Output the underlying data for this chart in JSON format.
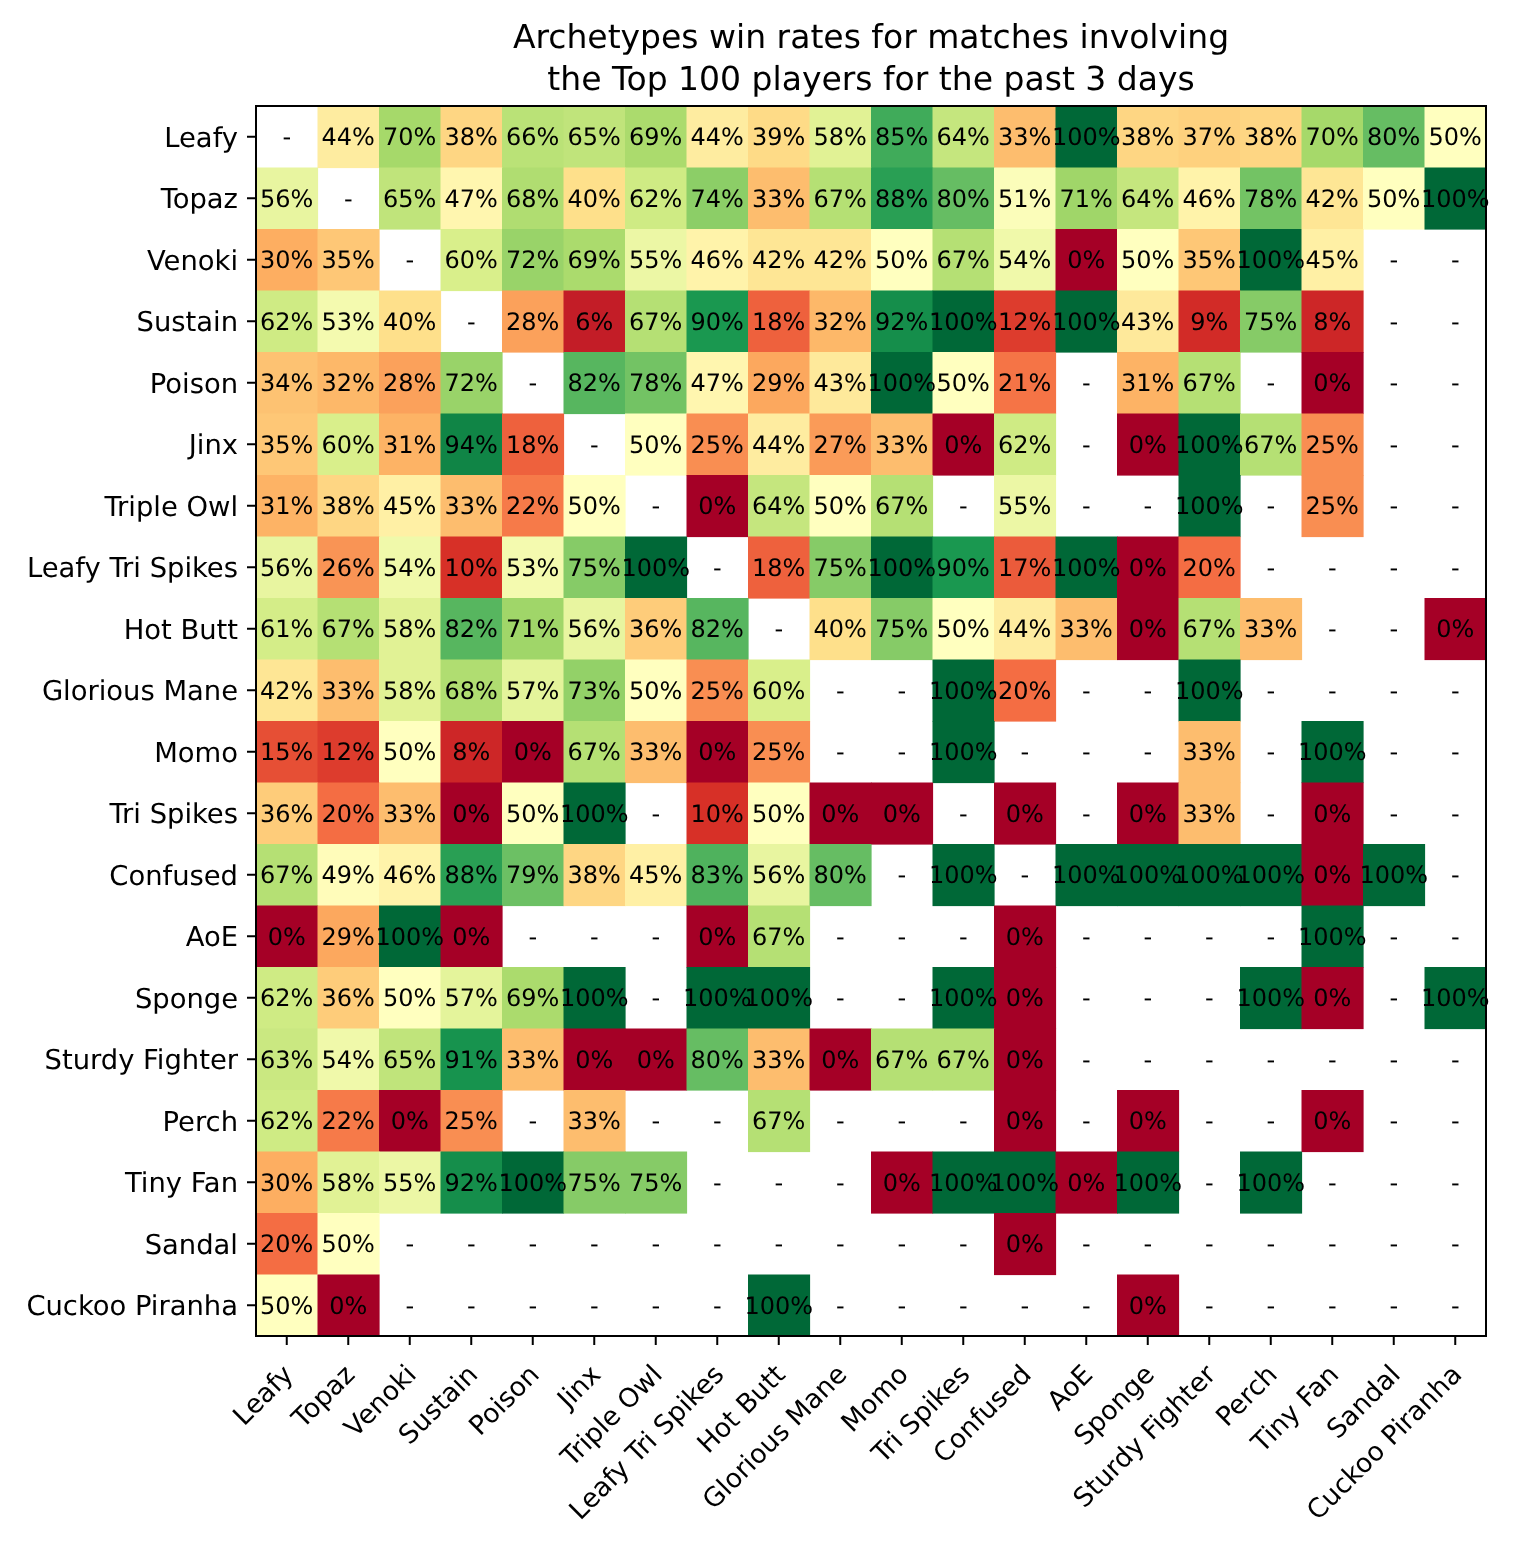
{
  "chart_data": {
    "type": "heatmap",
    "title": "Archetypes win rates for matches involving\nthe Top 100 players for the past 3 days",
    "categories": [
      "Leafy",
      "Topaz",
      "Venoki",
      "Sustain",
      "Poison",
      "Jinx",
      "Triple Owl",
      "Leafy Tri Spikes",
      "Hot Butt",
      "Glorious Mane",
      "Momo",
      "Tri Spikes",
      "Confused",
      "AoE",
      "Sponge",
      "Sturdy Fighter",
      "Perch",
      "Tiny Fan",
      "Sandal",
      "Cuckoo Piranha"
    ],
    "y_categories": [
      "Leafy",
      "Topaz",
      "Venoki",
      "Sustain",
      "Poison",
      "Jinx",
      "Triple Owl",
      "Leafy Tri Spikes",
      "Hot Butt",
      "Glorious Mane",
      "Momo",
      "Tri Spikes",
      "Confused",
      "AoE",
      "Sponge",
      "Sturdy Fighter",
      "Perch",
      "Tiny Fan",
      "Sandal",
      "Cuckoo Piranha"
    ],
    "cells": [
      [
        null,
        44,
        70,
        38,
        66,
        65,
        69,
        44,
        39,
        58,
        85,
        64,
        33,
        100,
        38,
        37,
        38,
        70,
        80,
        50
      ],
      [
        56,
        null,
        65,
        47,
        68,
        40,
        62,
        74,
        33,
        67,
        88,
        80,
        51,
        71,
        64,
        46,
        78,
        42,
        50,
        100
      ],
      [
        30,
        35,
        null,
        60,
        72,
        69,
        55,
        46,
        42,
        42,
        50,
        67,
        54,
        0,
        50,
        35,
        100,
        45,
        null,
        null
      ],
      [
        62,
        53,
        40,
        null,
        28,
        6,
        67,
        90,
        18,
        32,
        92,
        100,
        12,
        100,
        43,
        9,
        75,
        8,
        null,
        null
      ],
      [
        34,
        32,
        28,
        72,
        null,
        82,
        78,
        47,
        29,
        43,
        100,
        50,
        21,
        null,
        31,
        67,
        null,
        0,
        null,
        null
      ],
      [
        35,
        60,
        31,
        94,
        18,
        null,
        50,
        25,
        44,
        27,
        33,
        0,
        62,
        null,
        0,
        100,
        67,
        25,
        null,
        null
      ],
      [
        31,
        38,
        45,
        33,
        22,
        50,
        null,
        0,
        64,
        50,
        67,
        null,
        55,
        null,
        null,
        100,
        null,
        25,
        null,
        null
      ],
      [
        56,
        26,
        54,
        10,
        53,
        75,
        100,
        null,
        18,
        75,
        100,
        90,
        17,
        100,
        0,
        20,
        null,
        null,
        null,
        null
      ],
      [
        61,
        67,
        58,
        82,
        71,
        56,
        36,
        82,
        null,
        40,
        75,
        50,
        44,
        33,
        0,
        67,
        33,
        null,
        null,
        0
      ],
      [
        42,
        33,
        58,
        68,
        57,
        73,
        50,
        25,
        60,
        null,
        null,
        100,
        20,
        null,
        null,
        100,
        null,
        null,
        null,
        null
      ],
      [
        15,
        12,
        50,
        8,
        0,
        67,
        33,
        0,
        25,
        null,
        null,
        100,
        null,
        null,
        null,
        33,
        null,
        100,
        null,
        null
      ],
      [
        36,
        20,
        33,
        0,
        50,
        100,
        null,
        10,
        50,
        0,
        0,
        null,
        0,
        null,
        0,
        33,
        null,
        0,
        null,
        null
      ],
      [
        67,
        49,
        46,
        88,
        79,
        38,
        45,
        83,
        56,
        80,
        null,
        100,
        null,
        100,
        100,
        100,
        100,
        0,
        100,
        null
      ],
      [
        0,
        29,
        100,
        0,
        null,
        null,
        null,
        0,
        67,
        null,
        null,
        null,
        0,
        null,
        null,
        null,
        null,
        100,
        null,
        null
      ],
      [
        62,
        36,
        50,
        57,
        69,
        100,
        null,
        100,
        100,
        null,
        null,
        100,
        0,
        null,
        null,
        null,
        100,
        0,
        null,
        100
      ],
      [
        63,
        54,
        65,
        91,
        33,
        0,
        0,
        80,
        33,
        0,
        67,
        67,
        0,
        null,
        null,
        null,
        null,
        null,
        null,
        null
      ],
      [
        62,
        22,
        0,
        25,
        null,
        33,
        null,
        null,
        67,
        null,
        null,
        null,
        0,
        null,
        0,
        null,
        null,
        0,
        null,
        null
      ],
      [
        30,
        58,
        55,
        92,
        100,
        75,
        75,
        null,
        null,
        null,
        0,
        100,
        100,
        0,
        100,
        null,
        100,
        null,
        null,
        null
      ],
      [
        20,
        50,
        null,
        null,
        null,
        null,
        null,
        null,
        null,
        null,
        null,
        null,
        0,
        null,
        null,
        null,
        null,
        null,
        null,
        null
      ],
      [
        50,
        0,
        null,
        null,
        null,
        null,
        null,
        null,
        100,
        null,
        null,
        null,
        null,
        null,
        0,
        null,
        null,
        null,
        null,
        null
      ]
    ],
    "cell_labels": [
      [
        "-",
        "44%",
        "70%",
        "38%",
        "66%",
        "65%",
        "69%",
        "44%",
        "39%",
        "58%",
        "85%",
        "64%",
        "33%",
        "100%",
        "38%",
        "37%",
        "38%",
        "70%",
        "80%",
        "50%"
      ],
      [
        "56%",
        "-",
        "65%",
        "47%",
        "68%",
        "40%",
        "62%",
        "74%",
        "33%",
        "67%",
        "88%",
        "80%",
        "51%",
        "71%",
        "64%",
        "46%",
        "78%",
        "42%",
        "50%",
        "100%"
      ],
      [
        "30%",
        "35%",
        "-",
        "60%",
        "72%",
        "69%",
        "55%",
        "46%",
        "42%",
        "42%",
        "50%",
        "67%",
        "54%",
        "0%",
        "50%",
        "35%",
        "100%",
        "45%",
        "-",
        "-"
      ],
      [
        "62%",
        "53%",
        "40%",
        "-",
        "28%",
        "6%",
        "67%",
        "90%",
        "18%",
        "32%",
        "92%",
        "100%",
        "12%",
        "100%",
        "43%",
        "9%",
        "75%",
        "8%",
        "-",
        "-"
      ],
      [
        "34%",
        "32%",
        "28%",
        "72%",
        "-",
        "82%",
        "78%",
        "47%",
        "29%",
        "43%",
        "100%",
        "50%",
        "21%",
        "-",
        "31%",
        "67%",
        "-",
        "0%",
        "-",
        "-"
      ],
      [
        "35%",
        "60%",
        "31%",
        "94%",
        "18%",
        "-",
        "50%",
        "25%",
        "44%",
        "27%",
        "33%",
        "0%",
        "62%",
        "-",
        "0%",
        "100%",
        "67%",
        "25%",
        "-",
        "-"
      ],
      [
        "31%",
        "38%",
        "45%",
        "33%",
        "22%",
        "50%",
        "-",
        "0%",
        "64%",
        "50%",
        "67%",
        "-",
        "55%",
        "-",
        "-",
        "100%",
        "-",
        "25%",
        "-",
        "-"
      ],
      [
        "56%",
        "26%",
        "54%",
        "10%",
        "53%",
        "75%",
        "100%",
        "-",
        "18%",
        "75%",
        "100%",
        "90%",
        "17%",
        "100%",
        "0%",
        "20%",
        "-",
        "-",
        "-",
        "-"
      ],
      [
        "61%",
        "67%",
        "58%",
        "82%",
        "71%",
        "56%",
        "36%",
        "82%",
        "-",
        "40%",
        "75%",
        "50%",
        "44%",
        "33%",
        "0%",
        "67%",
        "33%",
        "-",
        "-",
        "0%"
      ],
      [
        "42%",
        "33%",
        "58%",
        "68%",
        "57%",
        "73%",
        "50%",
        "25%",
        "60%",
        "-",
        "-",
        "100%",
        "20%",
        "-",
        "-",
        "100%",
        "-",
        "-",
        "-",
        "-"
      ],
      [
        "15%",
        "12%",
        "50%",
        "8%",
        "0%",
        "67%",
        "33%",
        "0%",
        "25%",
        "-",
        "-",
        "100%",
        "-",
        "-",
        "-",
        "33%",
        "-",
        "100%",
        "-",
        "-"
      ],
      [
        "36%",
        "20%",
        "33%",
        "0%",
        "50%",
        "100%",
        "-",
        "10%",
        "50%",
        "0%",
        "0%",
        "-",
        "0%",
        "-",
        "0%",
        "33%",
        "-",
        "0%",
        "-",
        "-"
      ],
      [
        "67%",
        "49%",
        "46%",
        "88%",
        "79%",
        "38%",
        "45%",
        "83%",
        "56%",
        "80%",
        "-",
        "100%",
        "-",
        "100%",
        "100%",
        "100%",
        "100%",
        "0%",
        "100%",
        "-"
      ],
      [
        "0%",
        "29%",
        "100%",
        "0%",
        "-",
        "-",
        "-",
        "0%",
        "67%",
        "-",
        "-",
        "-",
        "0%",
        "-",
        "-",
        "-",
        "-",
        "100%",
        "-",
        "-"
      ],
      [
        "62%",
        "36%",
        "50%",
        "57%",
        "69%",
        "100%",
        "-",
        "100%",
        "100%",
        "-",
        "-",
        "100%",
        "0%",
        "-",
        "-",
        "-",
        "100%",
        "0%",
        "-",
        "100%"
      ],
      [
        "63%",
        "54%",
        "65%",
        "91%",
        "33%",
        "0%",
        "0%",
        "80%",
        "33%",
        "0%",
        "67%",
        "67%",
        "0%",
        "-",
        "-",
        "-",
        "-",
        "-",
        "-",
        "-"
      ],
      [
        "62%",
        "22%",
        "0%",
        "25%",
        "-",
        "33%",
        "-",
        "-",
        "67%",
        "-",
        "-",
        "-",
        "0%",
        "-",
        "0%",
        "-",
        "-",
        "0%",
        "-",
        "-"
      ],
      [
        "30%",
        "58%",
        "55%",
        "92%",
        "100%",
        "75%",
        "75%",
        "-",
        "-",
        "-",
        "0%",
        "100%",
        "100%",
        "0%",
        "100%",
        "-",
        "100%",
        "-",
        "-",
        "-"
      ],
      [
        "20%",
        "50%",
        "-",
        "-",
        "-",
        "-",
        "-",
        "-",
        "-",
        "-",
        "-",
        "-",
        "0%",
        "-",
        "-",
        "-",
        "-",
        "-",
        "-",
        "-"
      ],
      [
        "50%",
        "0%",
        "-",
        "-",
        "-",
        "-",
        "-",
        "-",
        "100%",
        "-",
        "-",
        "-",
        "-",
        "-",
        "0%",
        "-",
        "-",
        "-",
        "-",
        "-"
      ]
    ]
  }
}
